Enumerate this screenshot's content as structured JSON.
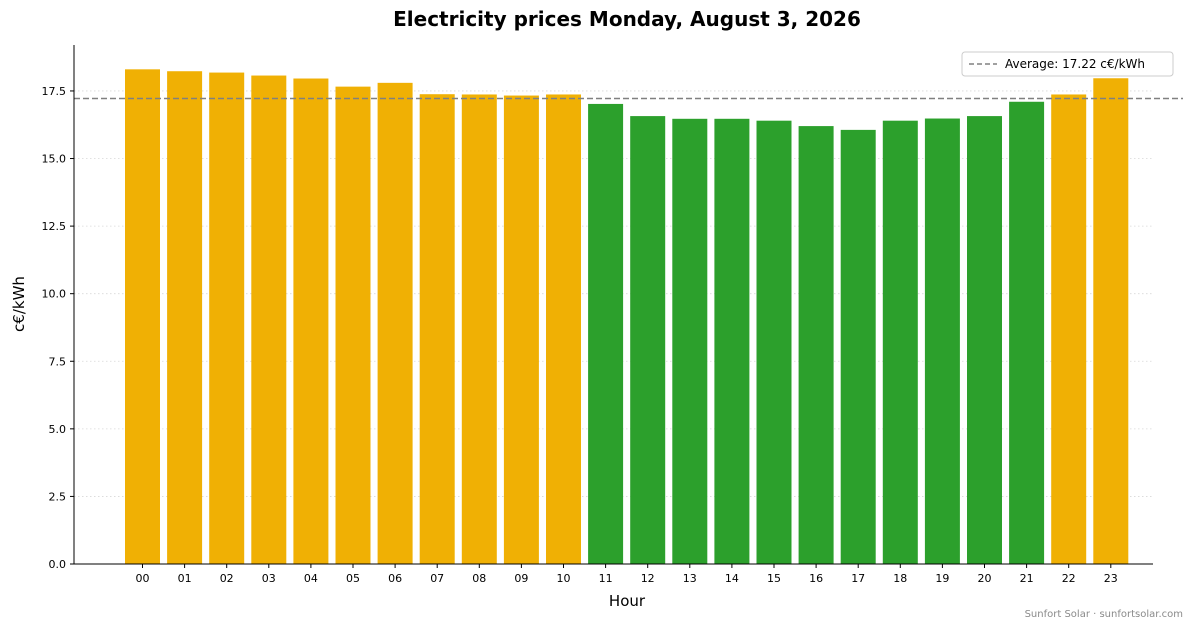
{
  "chart_data": {
    "type": "bar",
    "title": "Electricity prices Monday, August 3, 2026",
    "xlabel": "Hour",
    "ylabel": "c€/kWh",
    "categories": [
      "00",
      "01",
      "02",
      "03",
      "04",
      "05",
      "06",
      "07",
      "08",
      "09",
      "10",
      "11",
      "12",
      "13",
      "14",
      "15",
      "16",
      "17",
      "18",
      "19",
      "20",
      "21",
      "22",
      "23"
    ],
    "values": [
      18.3,
      18.23,
      18.18,
      18.07,
      17.96,
      17.66,
      17.8,
      17.38,
      17.37,
      17.33,
      17.37,
      17.02,
      16.57,
      16.47,
      16.47,
      16.4,
      16.2,
      16.06,
      16.4,
      16.48,
      16.57,
      17.1,
      17.37,
      17.97
    ],
    "ylim": [
      0,
      19.2
    ],
    "yticks": [
      "0.0",
      "2.5",
      "5.0",
      "7.5",
      "10.0",
      "12.5",
      "15.0",
      "17.5"
    ],
    "average": 17.22,
    "legend": {
      "label": "Average: 17.22 c€/kWh",
      "position": "top-right"
    },
    "grid": {
      "y": true,
      "style": "dotted"
    },
    "colors": {
      "above_average": "#f0b004",
      "below_average": "#2ca02c",
      "average_line": "#808080"
    }
  },
  "footer": {
    "credit": "Sunfort Solar · sunfortsolar.com"
  }
}
